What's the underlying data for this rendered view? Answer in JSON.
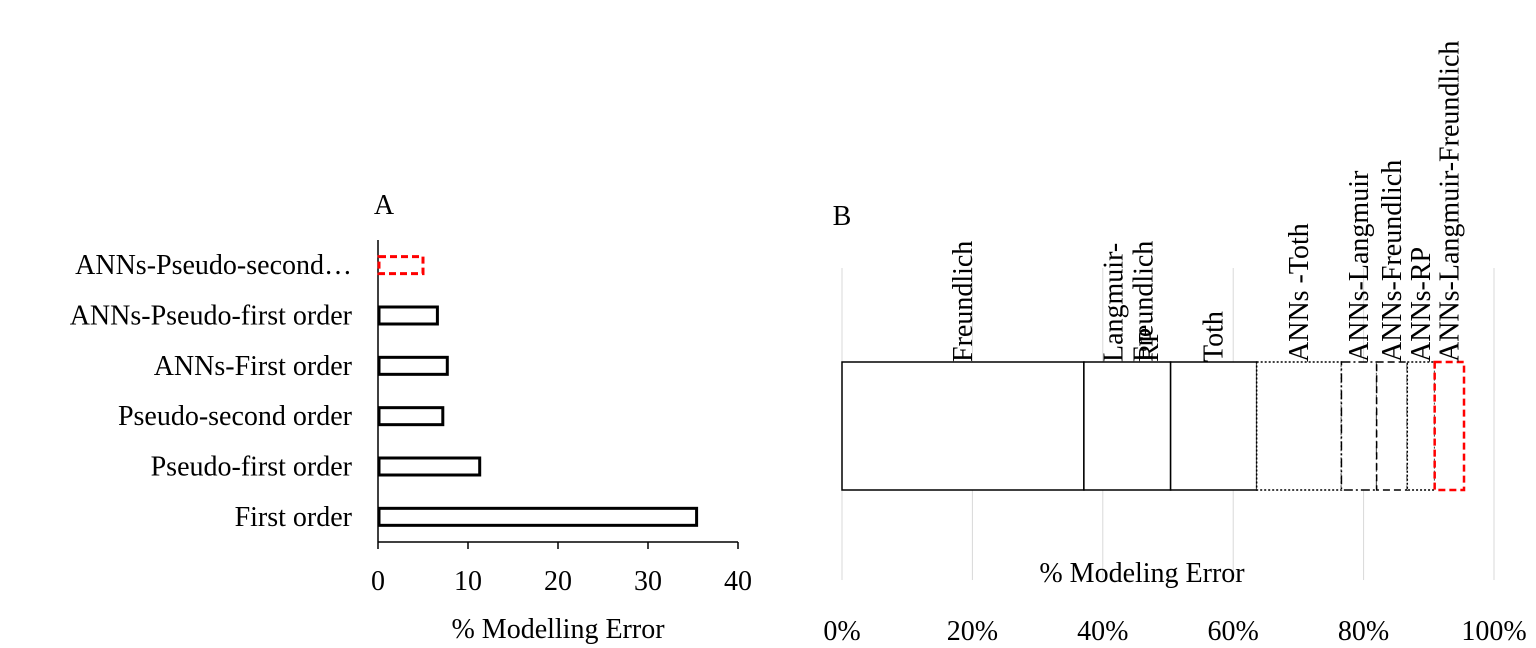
{
  "chart_data": [
    {
      "panel_label": "A",
      "type": "bar",
      "orientation": "horizontal",
      "categories": [
        "First order",
        "Pseudo-first order",
        "Pseudo-second order",
        "ANNs-First order",
        "ANNs-Pseudo-first order",
        "ANNs-Pseudo-second…"
      ],
      "values": [
        35.4,
        11.3,
        7.2,
        7.7,
        6.6,
        5.0
      ],
      "bar_colors": [
        "#000000",
        "#000000",
        "#000000",
        "#000000",
        "#000000",
        "#ff0000"
      ],
      "bar_styles": [
        "solid",
        "solid",
        "solid",
        "solid",
        "solid",
        "dashed"
      ],
      "xlabel": "% Modelling Error",
      "xlim": [
        0,
        40
      ],
      "xticks": [
        0,
        10,
        20,
        30,
        40
      ],
      "xtick_labels": [
        "0",
        "10",
        "20",
        "30",
        "40"
      ],
      "grid": false
    },
    {
      "panel_label": "B",
      "type": "bar",
      "orientation": "horizontal",
      "stacked": "100%",
      "segments": [
        {
          "name": "Freundlich",
          "value": 37.1,
          "color": "#000000",
          "style": "solid"
        },
        {
          "name": "RP",
          "value": 0.0,
          "color": "#000000",
          "style": "solid"
        },
        {
          "name": "Langmuir-\nFreundlich",
          "value": 13.3,
          "color": "#000000",
          "style": "solid"
        },
        {
          "name": "Toth",
          "value": 13.2,
          "color": "#000000",
          "style": "solid"
        },
        {
          "name": "ANNs -Toth",
          "value": 13.0,
          "color": "#000000",
          "style": "dotted"
        },
        {
          "name": "ANNs-Langmuir",
          "value": 5.4,
          "color": "#000000",
          "style": "dashdot"
        },
        {
          "name": "ANNs-Freundlich",
          "value": 4.7,
          "color": "#000000",
          "style": "dashed"
        },
        {
          "name": "ANNs-RP",
          "value": 4.2,
          "color": "#000000",
          "style": "dotted"
        },
        {
          "name": "ANNs-Langmuir-Freundlich",
          "value": 4.5,
          "color": "#ff0000",
          "style": "dashed"
        }
      ],
      "xlabel": "% Modeling Error",
      "xlim": [
        0,
        100
      ],
      "xticks": [
        0,
        20,
        40,
        60,
        80,
        100
      ],
      "xtick_labels": [
        "0%",
        "20%",
        "40%",
        "60%",
        "80%",
        "100%"
      ],
      "grid": true
    }
  ]
}
